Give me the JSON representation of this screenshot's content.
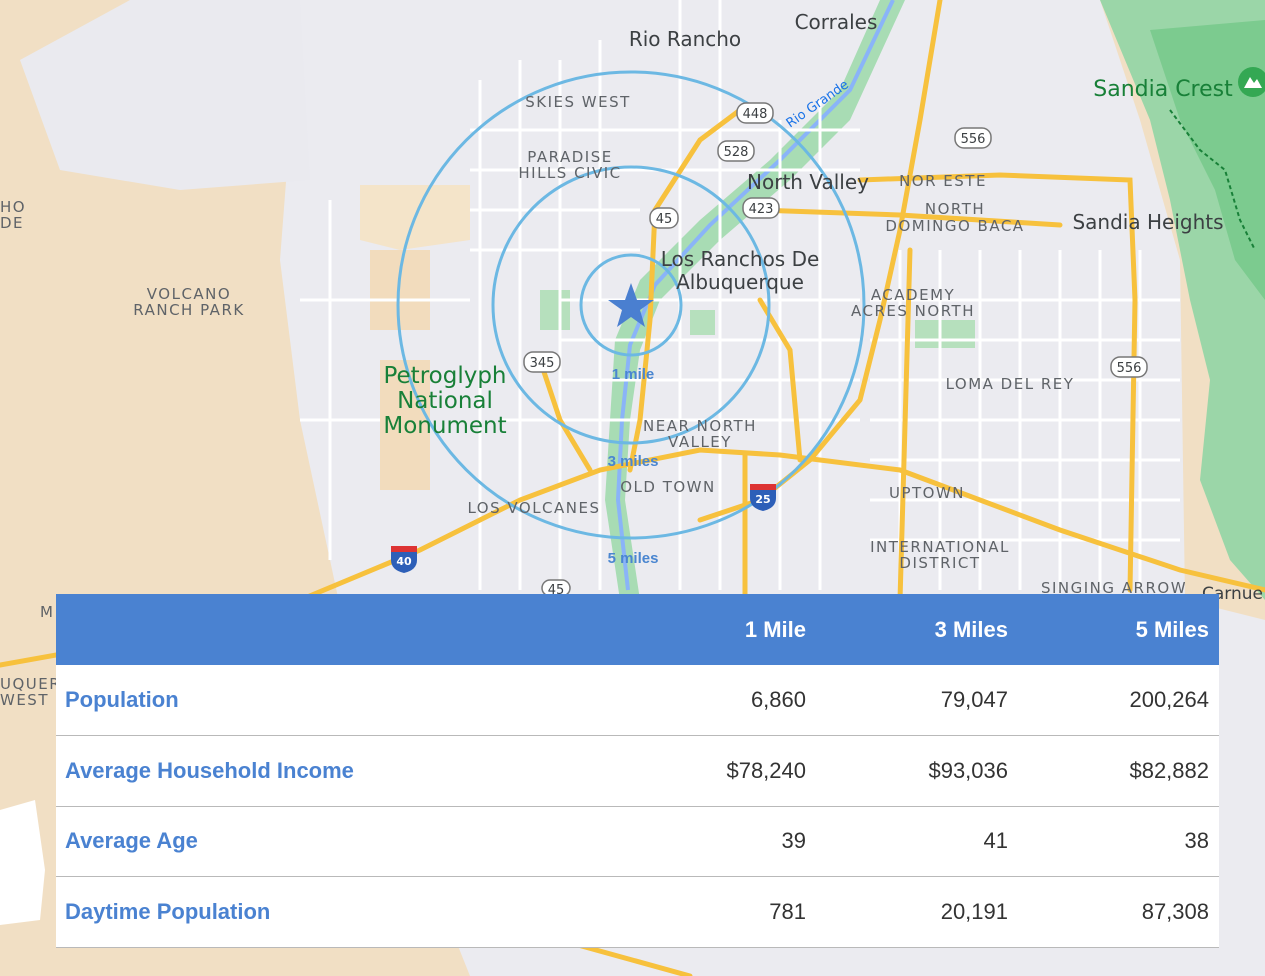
{
  "map": {
    "places": {
      "rio_rancho": "Rio Rancho",
      "corrales": "Corrales",
      "skies_west": "SKIES WEST",
      "paradise_hills_1": "PARADISE",
      "paradise_hills_2": "HILLS CIVIC",
      "north_valley": "North Valley",
      "nor_este": "NOR ESTE",
      "north_domingo_1": "NORTH",
      "north_domingo_2": "DOMINGO BACA",
      "sandia_heights": "Sandia Heights",
      "sandia_crest": "Sandia Crest",
      "los_ranchos_1": "Los Ranchos De",
      "los_ranchos_2": "Albuquerque",
      "academy_1": "ACADEMY",
      "academy_2": "ACRES NORTH",
      "volcano_1": "VOLCANO",
      "volcano_2": "RANCH PARK",
      "petroglyph_1": "Petroglyph",
      "petroglyph_2": "National",
      "petroglyph_3": "Monument",
      "loma_del_rey": "LOMA DEL REY",
      "near_north_1": "NEAR NORTH",
      "near_north_2": "VALLEY",
      "old_town": "OLD TOWN",
      "los_volcanes": "LOS VOLCANES",
      "uptown": "UPTOWN",
      "intl_1": "INTERNATIONAL",
      "intl_2": "DISTRICT",
      "singing_arrow": "SINGING ARROW",
      "carnue": "Carnue",
      "rio_grande": "Rio Grande",
      "edge_ho": "HO",
      "edge_de": "DE",
      "edge_m": "M",
      "edge_querq": "UQUERQ",
      "edge_west": "WEST"
    },
    "shields": {
      "r448": "448",
      "r528": "528",
      "r556a": "556",
      "r556b": "556",
      "r423": "423",
      "r45a": "45",
      "r45b": "45",
      "r345": "345",
      "i40": "40",
      "i25": "25"
    },
    "rings": {
      "one": "1 mile",
      "three": "3 miles",
      "five": "5 miles"
    },
    "colors": {
      "ring": "#6cb8e3",
      "star": "#4a7fd0",
      "highway": "#f7c13d",
      "park": "#8fd19e",
      "desert": "#f1dfc0"
    }
  },
  "table": {
    "headers": [
      "",
      "1 Mile",
      "3 Miles",
      "5 Miles"
    ],
    "rows": [
      {
        "label": "Population",
        "one": "6,860",
        "three": "79,047",
        "five": "200,264"
      },
      {
        "label": "Average Household Income",
        "one": "$78,240",
        "three": "$93,036",
        "five": "$82,882"
      },
      {
        "label": "Average Age",
        "one": "39",
        "three": "41",
        "five": "38"
      },
      {
        "label": "Daytime Population",
        "one": "781",
        "three": "20,191",
        "five": "87,308"
      }
    ],
    "header_color": "#4a82d1"
  }
}
